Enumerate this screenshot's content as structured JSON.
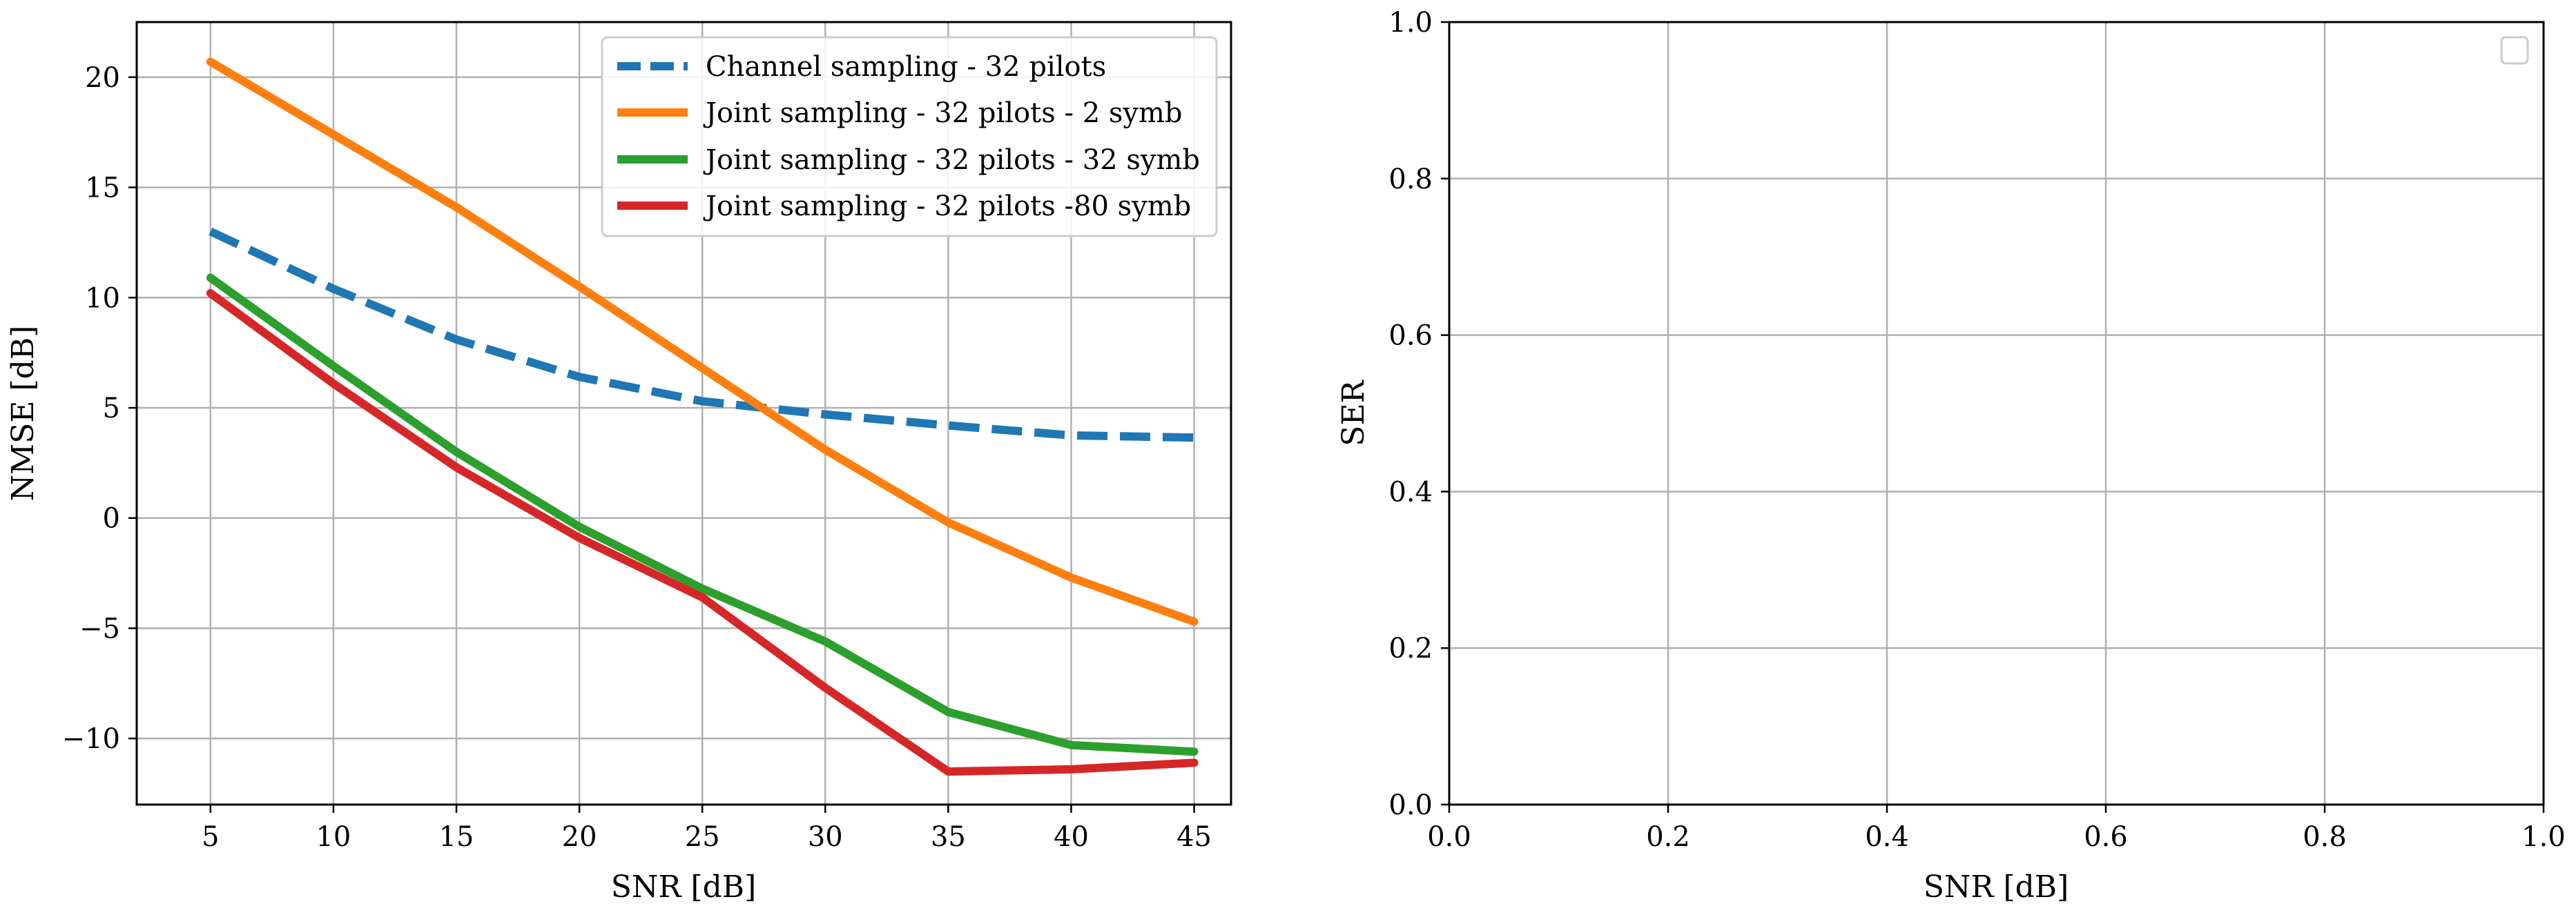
{
  "chart_data": [
    {
      "type": "line",
      "xlabel": "SNR [dB]",
      "ylabel": "NMSE [dB]",
      "x": [
        5,
        10,
        15,
        20,
        25,
        30,
        35,
        40,
        45
      ],
      "xlim": [
        2,
        46.5
      ],
      "ylim": [
        -13,
        22.5
      ],
      "xticks": [
        5,
        10,
        15,
        20,
        25,
        30,
        35,
        40,
        45
      ],
      "yticks": [
        -10,
        -5,
        0,
        5,
        10,
        15,
        20
      ],
      "ytick_labels": [
        "−10",
        "−5",
        "0",
        "5",
        "10",
        "15",
        "20"
      ],
      "grid": true,
      "legend_position": "top-right",
      "series": [
        {
          "name": "Channel sampling - 32 pilots",
          "color": "#1f77b4",
          "style": "dashed",
          "values": [
            13.0,
            10.4,
            8.1,
            6.4,
            5.3,
            4.7,
            4.2,
            3.75,
            3.65
          ]
        },
        {
          "name": "Joint sampling - 32 pilots - 2 symb",
          "color": "#ff7f0e",
          "style": "solid",
          "values": [
            20.7,
            17.4,
            14.1,
            10.5,
            6.8,
            3.1,
            -0.2,
            -2.7,
            -4.7
          ]
        },
        {
          "name": "Joint sampling - 32 pilots - 32 symb",
          "color": "#2ca02c",
          "style": "solid",
          "values": [
            10.9,
            6.9,
            3.0,
            -0.4,
            -3.2,
            -5.6,
            -8.8,
            -10.3,
            -10.6
          ]
        },
        {
          "name": "Joint sampling - 32 pilots -80 symb",
          "color": "#d62728",
          "style": "solid",
          "values": [
            10.2,
            6.1,
            2.3,
            -0.9,
            -3.6,
            -7.7,
            -11.5,
            -11.4,
            -11.1
          ]
        }
      ]
    },
    {
      "type": "line",
      "xlabel": "SNR [dB]",
      "ylabel": "SER",
      "xlim": [
        0,
        1
      ],
      "ylim": [
        0,
        1
      ],
      "xticks": [
        0.0,
        0.2,
        0.4,
        0.6,
        0.8,
        1.0
      ],
      "yticks": [
        0.0,
        0.2,
        0.4,
        0.6,
        0.8,
        1.0
      ],
      "xtick_labels": [
        "0.0",
        "0.2",
        "0.4",
        "0.6",
        "0.8",
        "1.0"
      ],
      "ytick_labels": [
        "0.0",
        "0.2",
        "0.4",
        "0.6",
        "0.8",
        "1.0"
      ],
      "grid": true,
      "legend_position": "top-right",
      "series": []
    }
  ]
}
